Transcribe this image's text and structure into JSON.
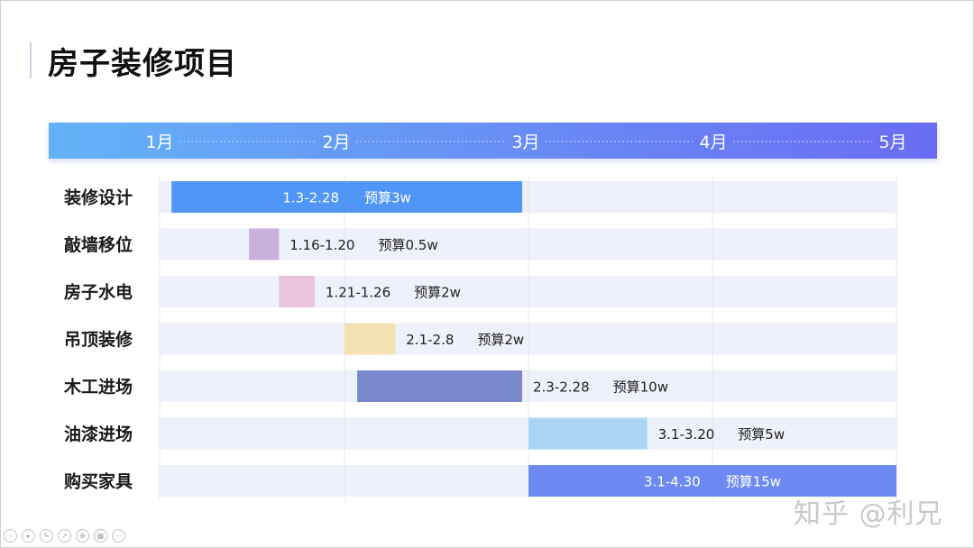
{
  "slide": {
    "title": "房子装修项目",
    "watermark": "知乎 @利兄"
  },
  "chart_data": {
    "type": "gantt",
    "title": "房子装修项目",
    "months": [
      "1月",
      "2月",
      "3月",
      "4月",
      "5月"
    ],
    "tasks": [
      {
        "name": "装修设计",
        "start": "1.3",
        "end": "2.28",
        "label": "1.3-2.28",
        "budget": "预算3w",
        "color": "#4f96f6",
        "label_inside": true,
        "label_color": "#ffffff"
      },
      {
        "name": "敲墙移位",
        "start": "1.16",
        "end": "1.20",
        "label": "1.16-1.20",
        "budget": "预算0.5w",
        "color": "#c9b1db",
        "label_inside": false,
        "label_color": "#222222"
      },
      {
        "name": "房子水电",
        "start": "1.21",
        "end": "1.26",
        "label": "1.21-1.26",
        "budget": "预算2w",
        "color": "#eac4dd",
        "label_inside": false,
        "label_color": "#222222"
      },
      {
        "name": "吊顶装修",
        "start": "2.1",
        "end": "2.8",
        "label": "2.1-2.8",
        "budget": "预算2w",
        "color": "#f3e1b2",
        "label_inside": false,
        "label_color": "#222222"
      },
      {
        "name": "木工进场",
        "start": "2.3",
        "end": "2.28",
        "label": "2.3-2.28",
        "budget": "预算10w",
        "color": "#7a89cc",
        "label_inside": false,
        "label_color": "#222222"
      },
      {
        "name": "油漆进场",
        "start": "3.1",
        "end": "3.20",
        "label": "3.1-3.20",
        "budget": "预算5w",
        "color": "#abd5f5",
        "label_inside": false,
        "label_color": "#222222"
      },
      {
        "name": "购买家具",
        "start": "3.1",
        "end": "4.30",
        "label": "3.1-4.30",
        "budget": "预算15w",
        "color": "#6d8af2",
        "label_inside": true,
        "label_color": "#ffffff"
      }
    ],
    "header_gradient": [
      "#64b2f7",
      "#6a6cf3"
    ],
    "row_background": "#eef0fa"
  },
  "player_controls": [
    "prev-icon",
    "play-icon",
    "pen-icon",
    "pointer-icon",
    "zoom-icon",
    "grid-icon",
    "more-icon"
  ]
}
